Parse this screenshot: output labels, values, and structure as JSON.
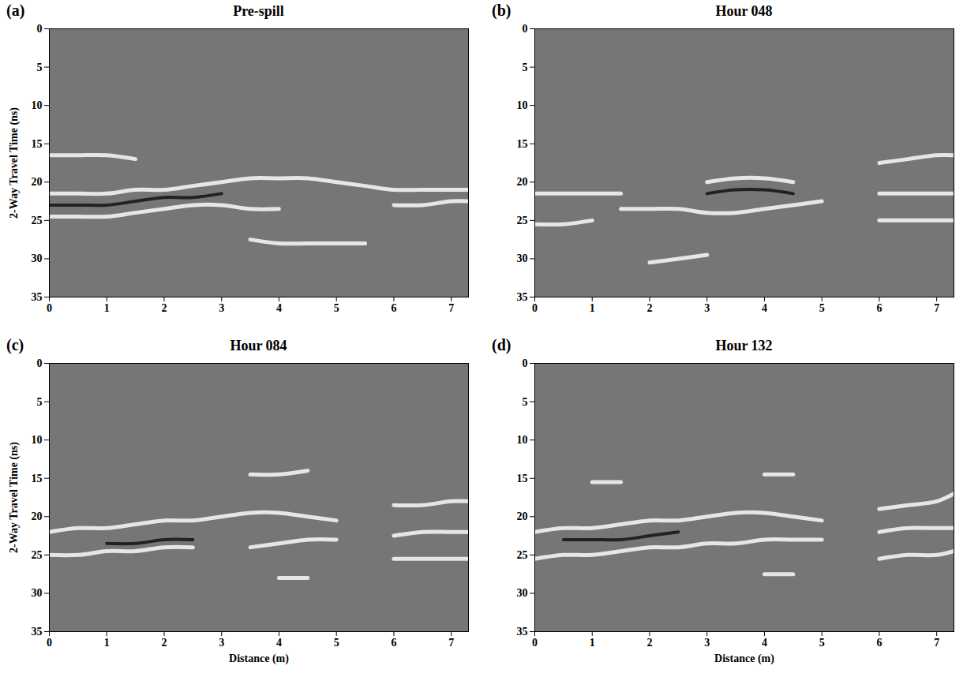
{
  "chart_data": [
    {
      "type": "line",
      "panel_label": "(a)",
      "title": "Pre-spill",
      "y_label": "2-Way Travel Time (ns)",
      "xlim": [
        0,
        7.3
      ],
      "xticks": [
        0,
        1,
        2,
        3,
        4,
        5,
        6,
        7
      ],
      "ylim": [
        0,
        35
      ],
      "yticks": [
        0,
        5,
        10,
        15,
        20,
        25,
        30,
        35
      ],
      "x": [
        0,
        0.5,
        1,
        1.5,
        2,
        2.5,
        3,
        3.5,
        4,
        4.5,
        5,
        5.5,
        6,
        6.5,
        7,
        7.3
      ],
      "series": [
        {
          "color": "#e6e6e6",
          "values": [
            16.5,
            16.5,
            16.5,
            17,
            null,
            null,
            null,
            null,
            null,
            null,
            null,
            null,
            null,
            null,
            null,
            null
          ]
        },
        {
          "color": "#e6e6e6",
          "values": [
            21.5,
            21.5,
            21.5,
            21,
            21,
            20.5,
            20,
            19.5,
            19.5,
            19.5,
            20,
            20.5,
            21,
            21,
            21,
            21
          ]
        },
        {
          "color": "#e6e6e6",
          "values": [
            24.5,
            24.5,
            24.5,
            24,
            23.5,
            23,
            23,
            23.5,
            23.5,
            null,
            null,
            null,
            23,
            23,
            22.5,
            22.5
          ]
        },
        {
          "color": "#222222",
          "values": [
            23,
            23,
            23,
            22.5,
            22,
            22,
            21.5,
            null,
            null,
            null,
            null,
            null,
            null,
            null,
            null,
            null
          ]
        },
        {
          "color": "#e6e6e6",
          "values": [
            null,
            null,
            null,
            null,
            null,
            null,
            null,
            27.5,
            28,
            28,
            28,
            28,
            null,
            null,
            null,
            null
          ]
        }
      ]
    },
    {
      "type": "line",
      "panel_label": "(b)",
      "title": "Hour 048",
      "xlim": [
        0,
        7.3
      ],
      "xticks": [
        0,
        1,
        2,
        3,
        4,
        5,
        6,
        7
      ],
      "ylim": [
        0,
        35
      ],
      "yticks": [
        0,
        5,
        10,
        15,
        20,
        25,
        30,
        35
      ],
      "x": [
        0,
        0.5,
        1,
        1.5,
        2,
        2.5,
        3,
        3.5,
        4,
        4.5,
        5,
        5.5,
        6,
        6.5,
        7,
        7.3
      ],
      "series": [
        {
          "color": "#e6e6e6",
          "values": [
            21.5,
            21.5,
            21.5,
            21.5,
            null,
            null,
            20,
            19.5,
            19.5,
            20,
            null,
            null,
            21.5,
            21.5,
            21.5,
            21.5
          ]
        },
        {
          "color": "#222222",
          "values": [
            null,
            null,
            null,
            null,
            null,
            null,
            21.5,
            21,
            21,
            21.5,
            null,
            null,
            null,
            null,
            null,
            null
          ]
        },
        {
          "color": "#e6e6e6",
          "values": [
            null,
            null,
            null,
            23.5,
            23.5,
            23.5,
            24,
            24,
            23.5,
            23,
            22.5,
            null,
            null,
            null,
            null,
            null
          ]
        },
        {
          "color": "#e6e6e6",
          "values": [
            null,
            null,
            null,
            null,
            null,
            null,
            null,
            null,
            null,
            null,
            null,
            null,
            17.5,
            17,
            16.5,
            16.5
          ]
        },
        {
          "color": "#e6e6e6",
          "values": [
            25.5,
            25.5,
            25,
            null,
            null,
            null,
            null,
            null,
            null,
            null,
            null,
            null,
            25,
            25,
            25,
            25
          ]
        },
        {
          "color": "#e6e6e6",
          "values": [
            null,
            null,
            null,
            null,
            30.5,
            30,
            29.5,
            null,
            null,
            null,
            null,
            null,
            null,
            null,
            null,
            null
          ]
        }
      ]
    },
    {
      "type": "line",
      "panel_label": "(c)",
      "title": "Hour 084",
      "x_label": "Distance (m)",
      "y_label": "2-Way Travel Time (ns)",
      "xlim": [
        0,
        7.3
      ],
      "xticks": [
        0,
        1,
        2,
        3,
        4,
        5,
        6,
        7
      ],
      "ylim": [
        0,
        35
      ],
      "yticks": [
        0,
        5,
        10,
        15,
        20,
        25,
        30,
        35
      ],
      "x": [
        0,
        0.5,
        1,
        1.5,
        2,
        2.5,
        3,
        3.5,
        4,
        4.5,
        5,
        5.5,
        6,
        6.5,
        7,
        7.3
      ],
      "series": [
        {
          "color": "#e6e6e6",
          "values": [
            22,
            21.5,
            21.5,
            21,
            20.5,
            20.5,
            20,
            19.5,
            19.5,
            20,
            20.5,
            null,
            18.5,
            18.5,
            18,
            18
          ]
        },
        {
          "color": "#222222",
          "values": [
            null,
            null,
            23.5,
            23.5,
            23,
            23,
            null,
            null,
            null,
            null,
            null,
            null,
            null,
            null,
            null,
            null
          ]
        },
        {
          "color": "#e6e6e6",
          "values": [
            25,
            25,
            24.5,
            24.5,
            24,
            24,
            null,
            24,
            23.5,
            23,
            23,
            null,
            22.5,
            22,
            22,
            22
          ]
        },
        {
          "color": "#e6e6e6",
          "values": [
            null,
            null,
            null,
            null,
            null,
            null,
            null,
            null,
            28,
            28,
            null,
            null,
            null,
            null,
            null,
            null
          ]
        },
        {
          "color": "#e6e6e6",
          "values": [
            null,
            null,
            null,
            null,
            null,
            null,
            null,
            null,
            null,
            null,
            null,
            null,
            25.5,
            25.5,
            25.5,
            25.5
          ]
        },
        {
          "color": "#e6e6e6",
          "values": [
            null,
            null,
            null,
            null,
            null,
            null,
            null,
            14.5,
            14.5,
            14,
            null,
            null,
            null,
            null,
            null,
            null
          ]
        }
      ]
    },
    {
      "type": "line",
      "panel_label": "(d)",
      "title": "Hour 132",
      "x_label": "Distance (m)",
      "xlim": [
        0,
        7.3
      ],
      "xticks": [
        0,
        1,
        2,
        3,
        4,
        5,
        6,
        7
      ],
      "ylim": [
        0,
        35
      ],
      "yticks": [
        0,
        5,
        10,
        15,
        20,
        25,
        30,
        35
      ],
      "x": [
        0,
        0.5,
        1,
        1.5,
        2,
        2.5,
        3,
        3.5,
        4,
        4.5,
        5,
        5.5,
        6,
        6.5,
        7,
        7.3
      ],
      "series": [
        {
          "color": "#e6e6e6",
          "values": [
            22,
            21.5,
            21.5,
            21,
            20.5,
            20.5,
            20,
            19.5,
            19.5,
            20,
            20.5,
            null,
            19,
            18.5,
            18,
            17
          ]
        },
        {
          "color": "#222222",
          "values": [
            null,
            23,
            23,
            23,
            22.5,
            22,
            null,
            null,
            null,
            null,
            null,
            null,
            null,
            null,
            null,
            null
          ]
        },
        {
          "color": "#e6e6e6",
          "values": [
            25.5,
            25,
            25,
            24.5,
            24,
            24,
            23.5,
            23.5,
            23,
            23,
            23,
            null,
            22,
            21.5,
            21.5,
            21.5
          ]
        },
        {
          "color": "#e6e6e6",
          "values": [
            null,
            null,
            null,
            null,
            null,
            null,
            null,
            null,
            27.5,
            27.5,
            null,
            null,
            null,
            null,
            null,
            null
          ]
        },
        {
          "color": "#e6e6e6",
          "values": [
            null,
            null,
            null,
            null,
            null,
            null,
            null,
            null,
            null,
            null,
            null,
            null,
            25.5,
            25,
            25,
            24.5
          ]
        },
        {
          "color": "#e6e6e6",
          "values": [
            null,
            null,
            15.5,
            15.5,
            null,
            null,
            null,
            null,
            14.5,
            14.5,
            null,
            null,
            null,
            null,
            null,
            null
          ]
        }
      ]
    }
  ]
}
